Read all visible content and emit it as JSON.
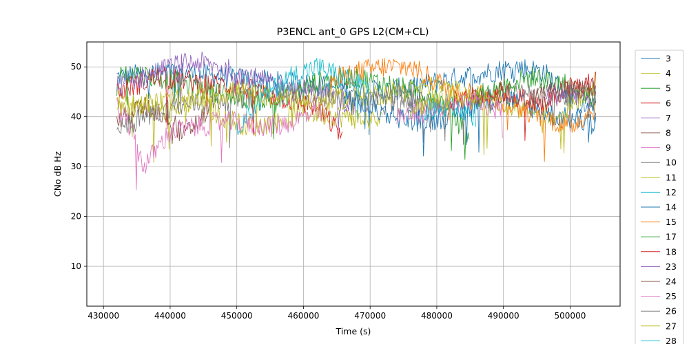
{
  "chart_data": {
    "type": "line",
    "title": "P3ENCL ant_0 GPS L2(CM+CL)",
    "xlabel": "Time (s)",
    "ylabel": "CNo dB Hz",
    "xlim": [
      427500,
      507500
    ],
    "ylim": [
      2,
      55
    ],
    "xticks": [
      430000,
      440000,
      450000,
      460000,
      470000,
      480000,
      490000,
      500000
    ],
    "yticks": [
      10,
      20,
      30,
      40,
      50
    ],
    "grid": true,
    "legend_position": "right-outside",
    "series": [
      {
        "name": "3",
        "color": "#1f77b4",
        "x": [
          432000,
          440000,
          448000,
          456000,
          464000,
          472000,
          480000,
          488000,
          492000,
          496000,
          500000,
          504000
        ],
        "y": [
          48,
          49,
          48,
          47,
          46,
          45,
          47,
          49,
          50,
          49,
          44,
          40
        ]
      },
      {
        "name": "4",
        "color": "#bcbd22",
        "x": [
          432000,
          436000,
          440000,
          444000,
          448000,
          452000,
          456000,
          460000,
          466000,
          472000
        ],
        "y": [
          44,
          42,
          41,
          43,
          40,
          38,
          39,
          41,
          40,
          39
        ]
      },
      {
        "name": "5",
        "color": "#2ca02c",
        "x": [
          432000,
          438000,
          444000,
          450000,
          456000,
          462000,
          468000,
          474000,
          480000,
          485000
        ],
        "y": [
          49,
          48,
          46,
          44,
          43,
          47,
          48,
          46,
          44,
          36
        ]
      },
      {
        "name": "6",
        "color": "#d62728",
        "x": [
          432000,
          438000,
          444000,
          450000,
          456000,
          462000,
          466000
        ],
        "y": [
          45,
          48,
          47,
          46,
          44,
          42,
          36
        ]
      },
      {
        "name": "7",
        "color": "#9467bd",
        "x": [
          432000,
          436000,
          440000,
          444000,
          450000,
          456000,
          462000,
          468000
        ],
        "y": [
          46,
          48,
          50,
          51,
          49,
          46,
          45,
          42
        ]
      },
      {
        "name": "8",
        "color": "#8c564b",
        "x": [
          432000,
          436000,
          440000,
          442000,
          444000,
          446000
        ],
        "y": [
          39,
          42,
          40,
          36,
          39,
          41
        ]
      },
      {
        "name": "9",
        "color": "#e377c2",
        "x": [
          432000,
          434000,
          436000,
          440000,
          448000,
          456000,
          460000,
          463000
        ],
        "y": [
          42,
          38,
          30,
          37,
          39,
          38,
          40,
          41
        ]
      },
      {
        "name": "10",
        "color": "#7f7f7f",
        "x": [
          432000,
          436000,
          440000,
          446000,
          452000,
          458000,
          464000,
          470000,
          476000,
          482000,
          488000,
          494000,
          500000,
          504000
        ],
        "y": [
          37,
          40,
          42,
          43,
          44,
          45,
          44,
          43,
          42,
          43,
          44,
          45,
          44,
          46
        ]
      },
      {
        "name": "11",
        "color": "#bcbd22",
        "x": [
          432000,
          438000,
          444000,
          450000,
          456000,
          462000,
          468000,
          474000,
          480000,
          486000,
          492000,
          498000,
          504000
        ],
        "y": [
          42,
          43,
          44,
          45,
          44,
          43,
          44,
          45,
          46,
          44,
          42,
          40,
          47
        ]
      },
      {
        "name": "12",
        "color": "#17becf",
        "x": [
          450000,
          454000,
          458000,
          462000,
          466000,
          470000
        ],
        "y": [
          38,
          44,
          48,
          50,
          48,
          46
        ]
      },
      {
        "name": "14",
        "color": "#1f77b4",
        "x": [
          466000,
          470000,
          474000,
          478000,
          482000,
          486000,
          490000,
          494000,
          498000,
          502000,
          504000
        ],
        "y": [
          44,
          42,
          40,
          39,
          40,
          43,
          44,
          42,
          40,
          39,
          38
        ]
      },
      {
        "name": "15",
        "color": "#ff7f0e",
        "x": [
          464000,
          468000,
          472000,
          476000,
          480000,
          484000,
          488000,
          492000,
          496000,
          500000,
          504000
        ],
        "y": [
          47,
          49,
          50,
          50,
          47,
          45,
          44,
          42,
          40,
          38,
          42
        ]
      },
      {
        "name": "17",
        "color": "#2ca02c",
        "x": [
          486000,
          490000,
          494000,
          498000,
          502000,
          504000
        ],
        "y": [
          44,
          46,
          48,
          47,
          45,
          43
        ]
      },
      {
        "name": "18",
        "color": "#d62728",
        "x": [
          482000,
          486000,
          490000,
          494000,
          496000,
          500000,
          504000
        ],
        "y": [
          43,
          44,
          45,
          43,
          42,
          46,
          47
        ]
      },
      {
        "name": "23",
        "color": "#9467bd",
        "x": [
          496000,
          500000,
          504000
        ],
        "y": [
          44,
          45,
          43
        ]
      },
      {
        "name": "24",
        "color": "#8c564b",
        "x": [
          494000,
          498000,
          502000,
          504000
        ],
        "y": [
          43,
          45,
          46,
          45
        ]
      },
      {
        "name": "25",
        "color": "#e377c2",
        "x": [
          474000,
          478000,
          482000,
          486000,
          490000
        ],
        "y": [
          40,
          41,
          42,
          43,
          41
        ]
      },
      {
        "name": "26",
        "color": "#7f7f7f",
        "x": [
          470000,
          474000,
          478000,
          482000
        ],
        "y": [
          44,
          45,
          43,
          42
        ]
      },
      {
        "name": "27",
        "color": "#bcbd22",
        "x": [
          476000,
          480000,
          484000,
          488000
        ],
        "y": [
          42,
          43,
          44,
          43
        ]
      },
      {
        "name": "28",
        "color": "#17becf",
        "x": [
          478000,
          482000,
          486000
        ],
        "y": [
          41,
          42,
          40
        ]
      }
    ]
  }
}
